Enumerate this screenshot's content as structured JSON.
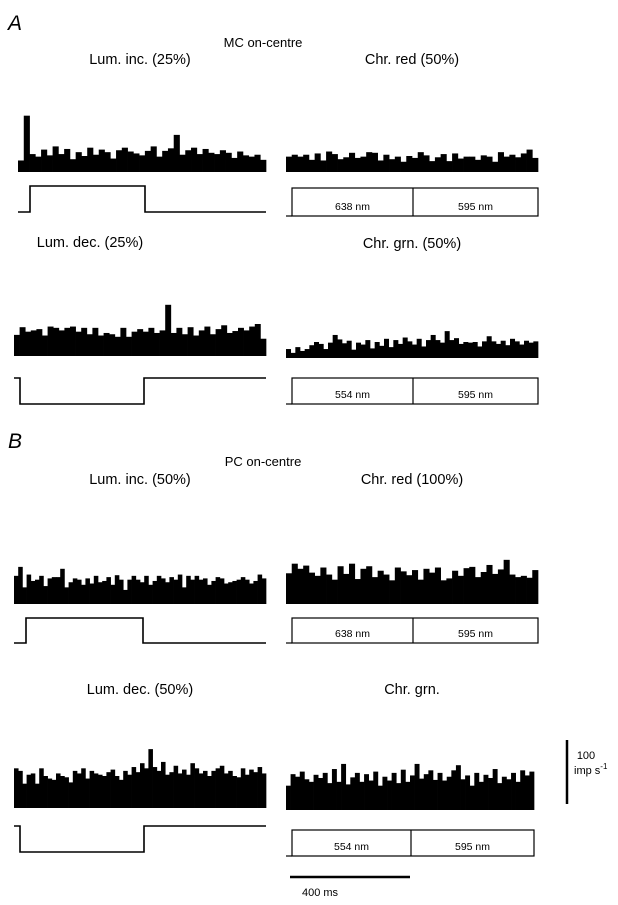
{
  "panels": [
    {
      "letter": "A",
      "group_title": "MC on-centre",
      "histograms": [
        {
          "title": "Lum. inc. (25%)",
          "stimulus": "lum_inc"
        },
        {
          "title": "Chr. red (50%)",
          "stimulus": "chr",
          "wavelengths": [
            "638 nm",
            "595 nm"
          ]
        },
        {
          "title": "Lum. dec. (25%)",
          "stimulus": "lum_dec"
        },
        {
          "title": "Chr. grn. (50%)",
          "stimulus": "chr",
          "wavelengths": [
            "554 nm",
            "595 nm"
          ]
        }
      ]
    },
    {
      "letter": "B",
      "group_title": "PC on-centre",
      "histograms": [
        {
          "title": "Lum. inc. (50%)",
          "stimulus": "lum_inc"
        },
        {
          "title": "Chr. red (100%)",
          "stimulus": "chr",
          "wavelengths": [
            "638 nm",
            "595 nm"
          ]
        },
        {
          "title": "Lum. dec. (50%)",
          "stimulus": "lum_dec"
        },
        {
          "title": "Chr. grn.",
          "stimulus": "chr",
          "wavelengths": [
            "554 nm",
            "595 nm"
          ]
        }
      ]
    }
  ],
  "scale_bars": {
    "rate_value": "100",
    "rate_unit": "imp s",
    "rate_unit_exp": "-1",
    "time": "400 ms"
  },
  "chart_data": [
    {
      "type": "bar",
      "title": "Lum. inc. (25%)",
      "panel": "A",
      "cell": "MC on-centre",
      "x_unit": "bin",
      "y_unit": "imp s-1",
      "values": [
        18,
        88,
        28,
        24,
        35,
        26,
        40,
        28,
        36,
        20,
        31,
        25,
        38,
        27,
        35,
        31,
        21,
        34,
        38,
        32,
        29,
        26,
        33,
        40,
        24,
        33,
        37,
        58,
        27,
        34,
        38,
        28,
        36,
        30,
        28,
        34,
        30,
        22,
        32,
        26,
        24,
        27,
        19
      ]
    },
    {
      "type": "bar",
      "title": "Chr. red (50%)",
      "panel": "A",
      "cell": "MC on-centre",
      "x_unit": "bin",
      "y_unit": "imp s-1",
      "values": [
        24,
        27,
        24,
        27,
        19,
        29,
        18,
        32,
        28,
        20,
        23,
        30,
        22,
        24,
        31,
        30,
        18,
        27,
        20,
        24,
        16,
        25,
        22,
        31,
        26,
        17,
        23,
        28,
        17,
        29,
        21,
        24,
        24,
        19,
        26,
        24,
        16,
        31,
        24,
        27,
        23,
        29,
        35,
        22
      ]
    },
    {
      "type": "bar",
      "title": "Lum. dec. (25%)",
      "panel": "A",
      "cell": "MC on-centre",
      "x_unit": "bin",
      "y_unit": "imp s-1",
      "values": [
        33,
        45,
        38,
        40,
        42,
        32,
        46,
        44,
        40,
        44,
        46,
        38,
        44,
        34,
        44,
        32,
        36,
        34,
        30,
        44,
        30,
        38,
        42,
        38,
        44,
        36,
        40,
        80,
        36,
        44,
        34,
        45,
        32,
        40,
        46,
        34,
        42,
        48,
        36,
        39,
        44,
        40,
        46,
        50,
        27
      ]
    },
    {
      "type": "bar",
      "title": "Chr. grn. (50%)",
      "panel": "A",
      "cell": "MC on-centre",
      "x_unit": "bin",
      "y_unit": "imp s-1",
      "values": [
        14,
        8,
        17,
        11,
        14,
        20,
        25,
        22,
        14,
        24,
        36,
        29,
        23,
        27,
        13,
        24,
        21,
        28,
        15,
        25,
        19,
        30,
        17,
        28,
        22,
        32,
        26,
        21,
        30,
        18,
        28,
        36,
        28,
        24,
        42,
        28,
        31,
        22,
        25,
        24,
        25,
        18,
        26,
        34,
        26,
        22,
        27,
        20,
        30,
        26,
        21,
        27,
        24,
        26
      ]
    },
    {
      "type": "bar",
      "title": "Lum. inc. (50%)",
      "panel": "B",
      "cell": "PC on-centre",
      "x_unit": "bin",
      "y_unit": "imp s-1",
      "values": [
        44,
        58,
        26,
        46,
        36,
        38,
        44,
        28,
        40,
        42,
        42,
        55,
        26,
        34,
        40,
        38,
        30,
        40,
        32,
        44,
        34,
        36,
        42,
        30,
        45,
        38,
        22,
        38,
        44,
        38,
        34,
        44,
        30,
        36,
        44,
        40,
        34,
        42,
        38,
        46,
        26,
        44,
        38,
        44,
        38,
        40,
        30,
        36,
        42,
        40,
        32,
        34,
        36,
        38,
        42,
        38,
        32,
        36,
        46,
        40
      ]
    },
    {
      "type": "bar",
      "title": "Chr. red (100%)",
      "panel": "B",
      "cell": "PC on-centre",
      "x_unit": "bin",
      "y_unit": "imp s-1",
      "values": [
        48,
        63,
        55,
        60,
        49,
        44,
        57,
        46,
        38,
        59,
        47,
        63,
        39,
        55,
        59,
        42,
        52,
        46,
        37,
        57,
        51,
        45,
        53,
        38,
        55,
        49,
        57,
        37,
        40,
        52,
        44,
        56,
        58,
        42,
        50,
        61,
        47,
        54,
        69,
        46,
        42,
        44,
        41,
        53
      ]
    },
    {
      "type": "bar",
      "title": "Lum. dec. (50%)",
      "panel": "B",
      "cell": "PC on-centre",
      "x_unit": "bin",
      "y_unit": "imp s-1",
      "values": [
        62,
        58,
        38,
        52,
        54,
        38,
        62,
        50,
        46,
        44,
        54,
        50,
        48,
        40,
        58,
        54,
        62,
        46,
        58,
        54,
        52,
        50,
        56,
        60,
        50,
        44,
        58,
        52,
        64,
        56,
        70,
        62,
        92,
        64,
        58,
        72,
        52,
        56,
        66,
        54,
        60,
        52,
        70,
        62,
        54,
        58,
        50,
        58,
        62,
        66,
        54,
        58,
        50,
        48,
        62,
        52,
        60,
        56,
        64,
        54
      ]
    },
    {
      "type": "bar",
      "title": "Chr. grn.",
      "panel": "B",
      "cell": "PC on-centre",
      "x_unit": "bin",
      "y_unit": "imp s-1",
      "values": [
        38,
        56,
        52,
        60,
        48,
        44,
        55,
        50,
        58,
        42,
        64,
        44,
        72,
        40,
        51,
        58,
        44,
        56,
        46,
        60,
        38,
        52,
        46,
        58,
        42,
        63,
        44,
        54,
        72,
        49,
        56,
        62,
        47,
        58,
        46,
        52,
        62,
        70,
        48,
        54,
        38,
        58,
        44,
        55,
        50,
        64,
        42,
        52,
        48,
        58,
        44,
        62,
        54,
        60
      ]
    }
  ]
}
